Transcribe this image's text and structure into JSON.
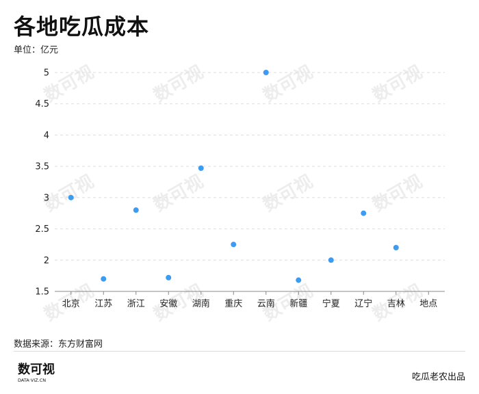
{
  "title": "各地吃瓜成本",
  "unit_label": "单位：亿元",
  "source": "数据来源：东方财富网",
  "brand": "吃瓜老农出品",
  "logo": {
    "main": "数可视",
    "sub": "DATA·VIZ.CN"
  },
  "watermark": "数可视",
  "colors": {
    "dot": "#3d9bf0",
    "grid": "#dddddd",
    "axis": "#888888"
  },
  "chart_data": {
    "type": "scatter",
    "categories": [
      "北京",
      "江苏",
      "浙江",
      "安徽",
      "湖南",
      "重庆",
      "云南",
      "新疆",
      "宁夏",
      "辽宁",
      "吉林",
      "地点"
    ],
    "values": [
      3.0,
      1.7,
      2.8,
      1.72,
      3.47,
      2.25,
      5.0,
      1.68,
      2.0,
      2.75,
      2.2,
      null
    ],
    "yticks": [
      1.5,
      2,
      2.5,
      3,
      3.5,
      4,
      4.5,
      5
    ],
    "ylim": [
      1.5,
      5.0
    ],
    "grid": "horizontal-dashed",
    "legend": "none"
  }
}
